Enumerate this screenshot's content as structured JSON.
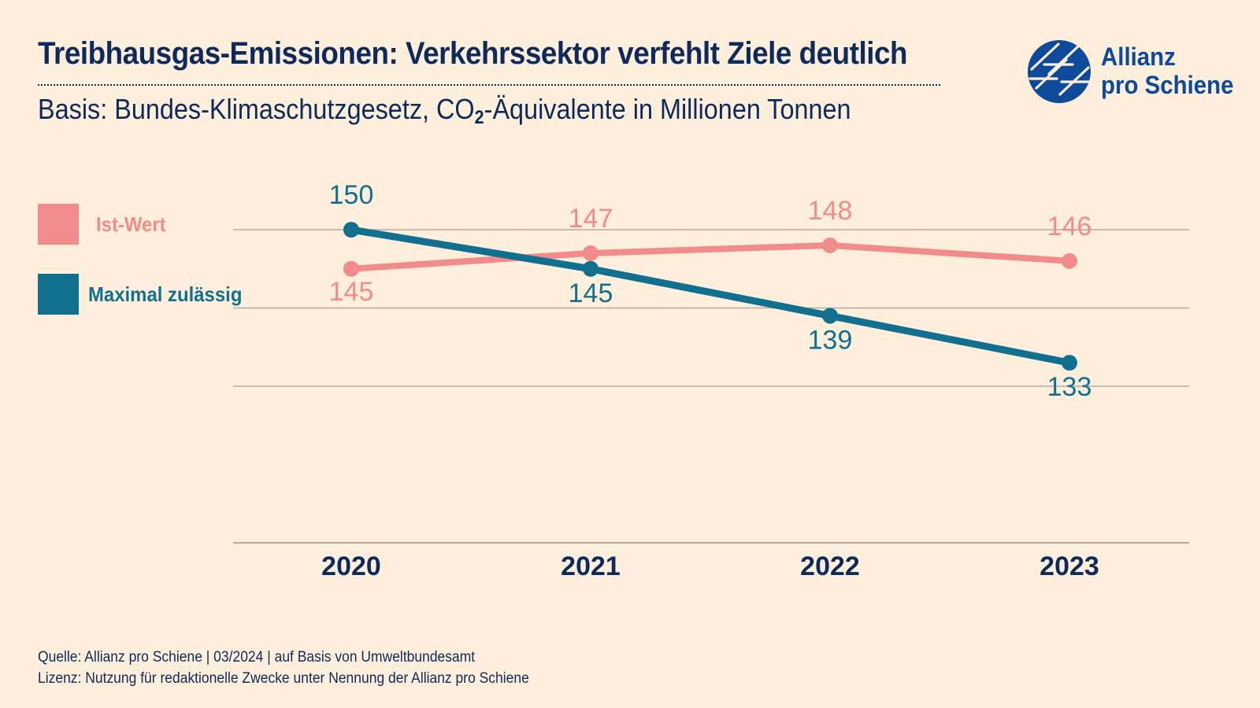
{
  "header": {
    "title": "Treibhausgas-Emissionen: Verkehrssektor verfehlt Ziele deutlich",
    "subtitle_prefix": "Basis: Bundes-Klimaschutzgesetz, CO",
    "subtitle_sub": "2",
    "subtitle_suffix": "-Äquivalente in Millionen Tonnen"
  },
  "logo": {
    "line1": "Allianz",
    "line2": "pro Schiene",
    "icon": "allianz-pro-schiene-logo-icon"
  },
  "footer": {
    "source": "Quelle: Allianz pro Schiene | 03/2024 | auf Basis von Umweltbundesamt",
    "license": "Lizenz: Nutzung für redaktionelle Zwecke unter Nennung der Allianz pro Schiene"
  },
  "colors": {
    "background": "#fdefdc",
    "navy": "#0e2a5a",
    "ist": "#f28b8b",
    "max": "#12708f",
    "grid": "#b8aba0",
    "logo": "#0d4a9a"
  },
  "chart_data": {
    "type": "line",
    "categories": [
      "2020",
      "2021",
      "2022",
      "2023"
    ],
    "ylim": [
      110,
      155
    ],
    "grid": true,
    "legend_position": "left",
    "series": [
      {
        "name": "Ist-Wert",
        "color": "#f28b8b",
        "values": [
          145,
          147,
          148,
          146
        ]
      },
      {
        "name": "Maximal zulässig",
        "color": "#12708f",
        "values": [
          150,
          145,
          139,
          133
        ]
      }
    ]
  }
}
